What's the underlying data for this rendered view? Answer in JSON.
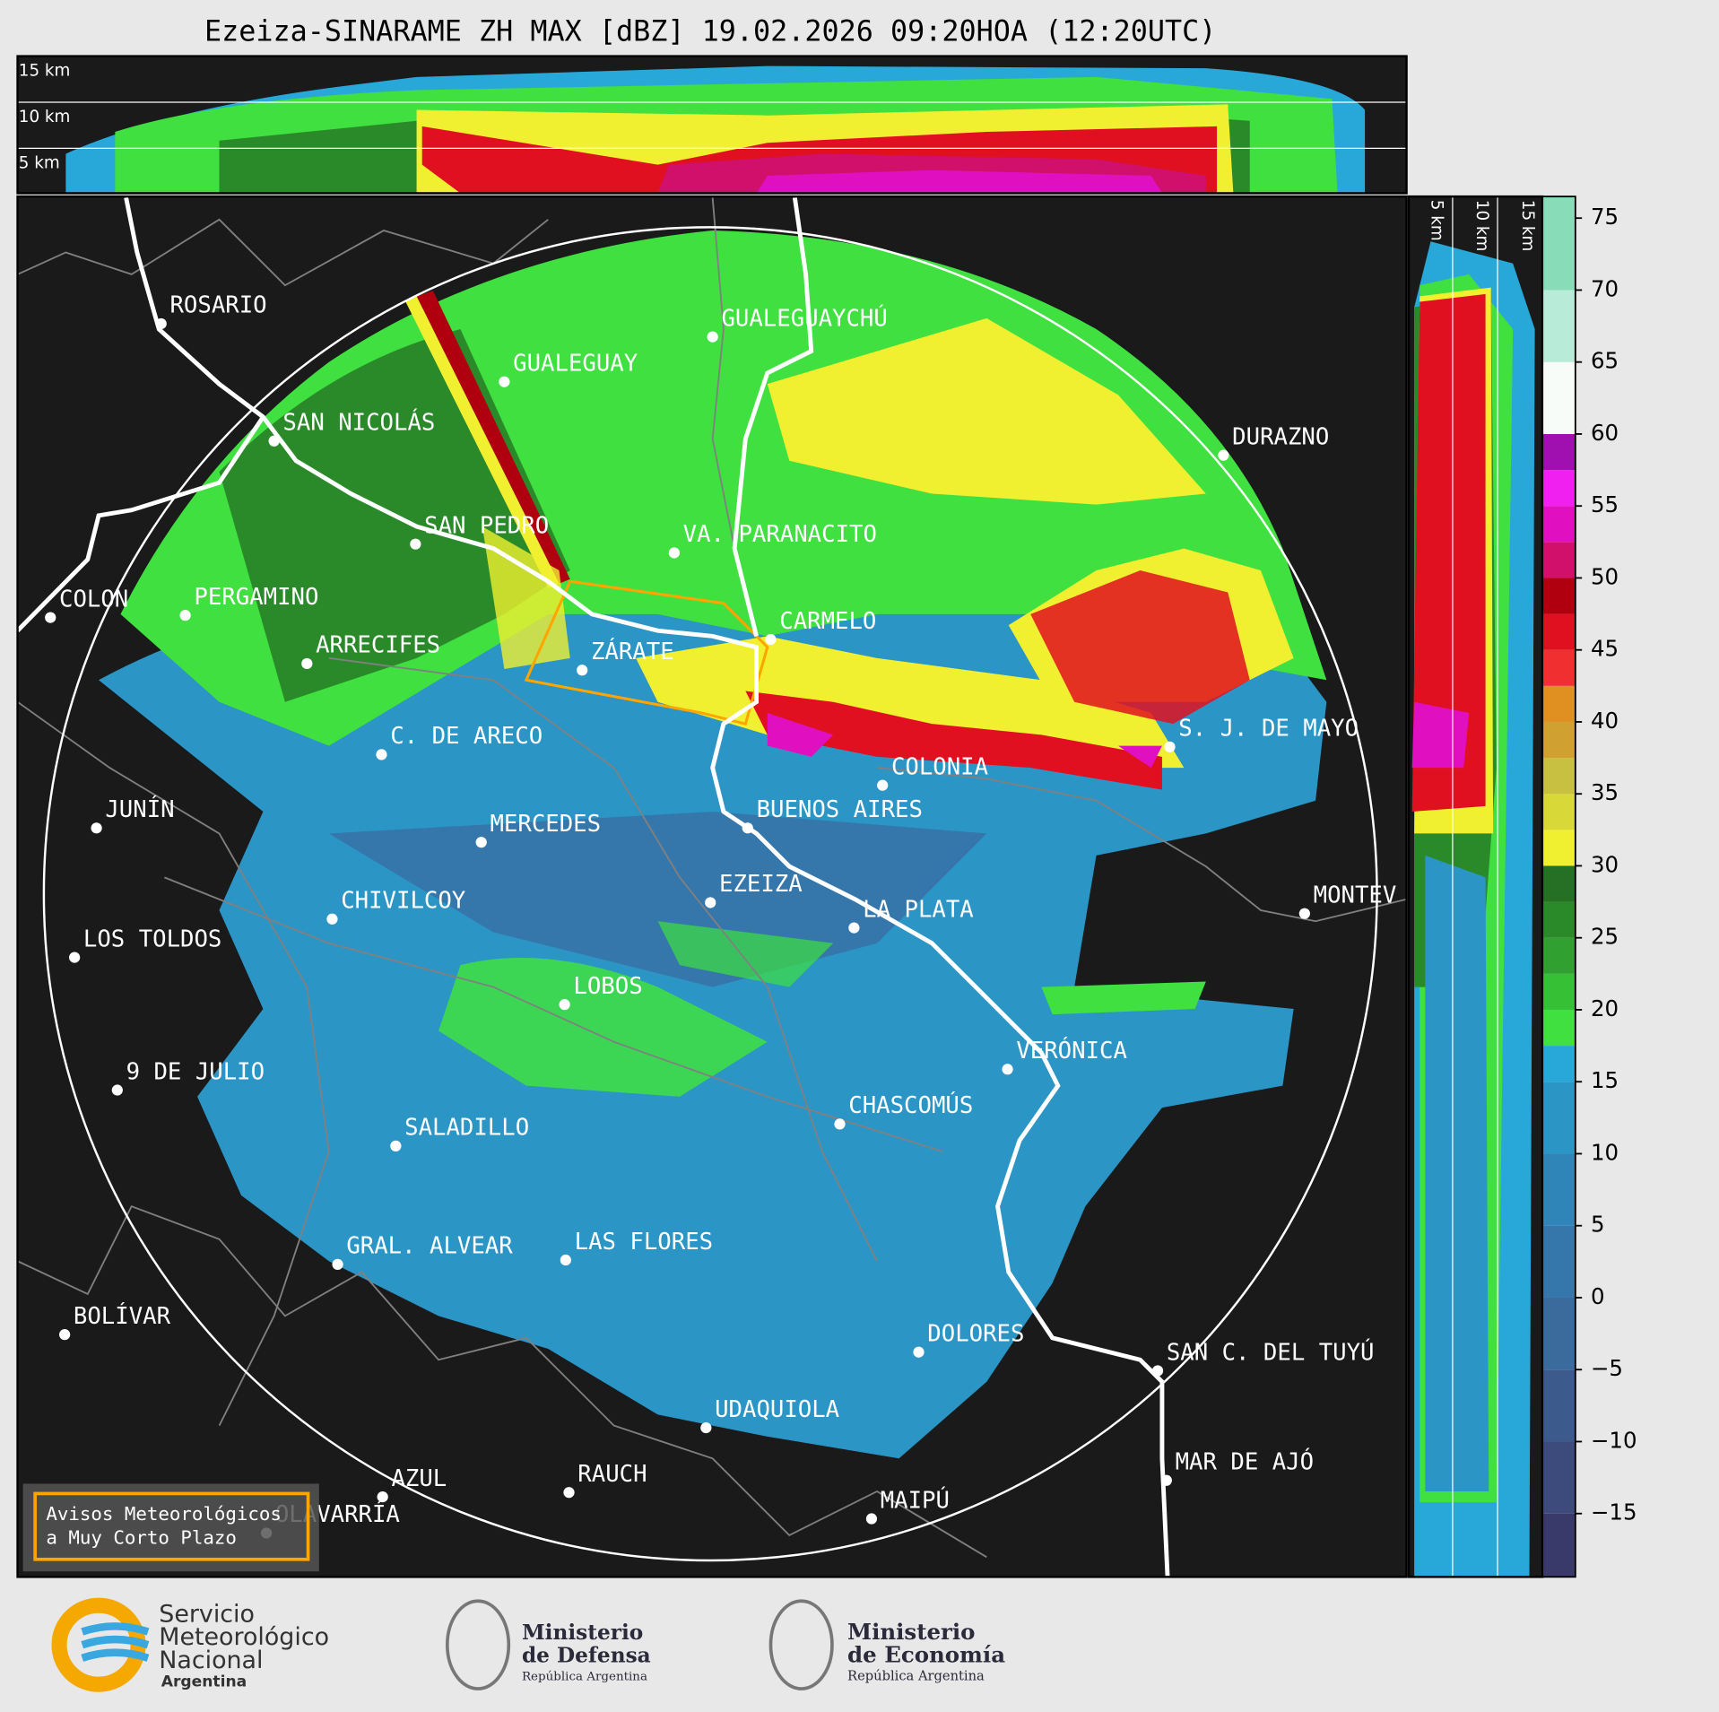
{
  "title": "Ezeiza-SINARAME ZH MAX [dBZ] 19.02.2026 09:20HOA (12:20UTC)",
  "top_heights": [
    "15 km",
    "10 km",
    "5 km"
  ],
  "right_heights": [
    "5 km",
    "10 km",
    "15 km"
  ],
  "cities": [
    "ROSARIO",
    "GUALEGUAYCHÚ",
    "GUALEGUAY",
    "SAN NICOLÁS",
    "DURAZNO",
    "SAN PEDRO",
    "VA. PARANACITO",
    "COLON",
    "PERGAMINO",
    "CARMELO",
    "ARRECIFES",
    "ZÁRATE",
    "S. J. DE MAYO",
    "C. DE ARECO",
    "COLONIA",
    "JUNÍN",
    "BUENOS AIRES",
    "MERCEDES",
    "EZEIZA",
    "MONTEV",
    "CHIVILCOY",
    "LA PLATA",
    "LOS TOLDOS",
    "LOBOS",
    "VERÓNICA",
    "9 DE JULIO",
    "CHASCOMÚS",
    "SALADILLO",
    "GRAL. ALVEAR",
    "LAS FLORES",
    "BOLÍVAR",
    "DOLORES",
    "SAN C. DEL TUYÚ",
    "UDAQUIOLA",
    "MAR DE AJÓ",
    "AZUL",
    "RAUCH",
    "OLAVARRÍA",
    "MAIPÚ"
  ],
  "warning_box": [
    "Avisos Meteorológicos",
    "a Muy Corto Plazo"
  ],
  "colorbar": {
    "ylim": [
      -19.4,
      76.5
    ],
    "yticks": [
      {
        "value": -15,
        "label": "−15"
      },
      {
        "value": -10,
        "label": "−10"
      },
      {
        "value": -5,
        "label": "−5"
      },
      0,
      5,
      10,
      15,
      20,
      25,
      30,
      35,
      40,
      45,
      50,
      55,
      60,
      65,
      70,
      75
    ],
    "bounds": [
      -19.4,
      -15,
      -10,
      -5,
      0,
      5,
      10,
      15,
      17.5,
      20,
      22.5,
      25,
      27.5,
      30,
      32.5,
      35,
      37.5,
      40,
      42.5,
      45,
      47.5,
      50,
      52.5,
      55,
      57.5,
      60,
      65,
      70,
      76.5
    ],
    "colors": [
      "#3a3a6a",
      "#3c4a7c",
      "#3d5a8c",
      "#3b6a9c",
      "#3577aa",
      "#2f85b8",
      "#2b95c6",
      "#28a8d8",
      "#3fe040",
      "#35c035",
      "#30a030",
      "#2a8a2a",
      "#257025",
      "#f0f030",
      "#d8d838",
      "#c8c040",
      "#d0a030",
      "#e09020",
      "#f03030",
      "#e01020",
      "#b00010",
      "#d0106a",
      "#e010c0",
      "#f020f0",
      "#a010b0",
      "#f8fcf8",
      "#b8ecd8",
      "#88dcb8"
    ]
  },
  "logos": {
    "smn": [
      "Servicio",
      "Meteorológico",
      "Nacional",
      "Argentina"
    ],
    "defensa": [
      "Ministerio",
      "de Defensa",
      "República Argentina"
    ],
    "economia": [
      "Ministerio",
      "de Economía",
      "República Argentina"
    ]
  }
}
